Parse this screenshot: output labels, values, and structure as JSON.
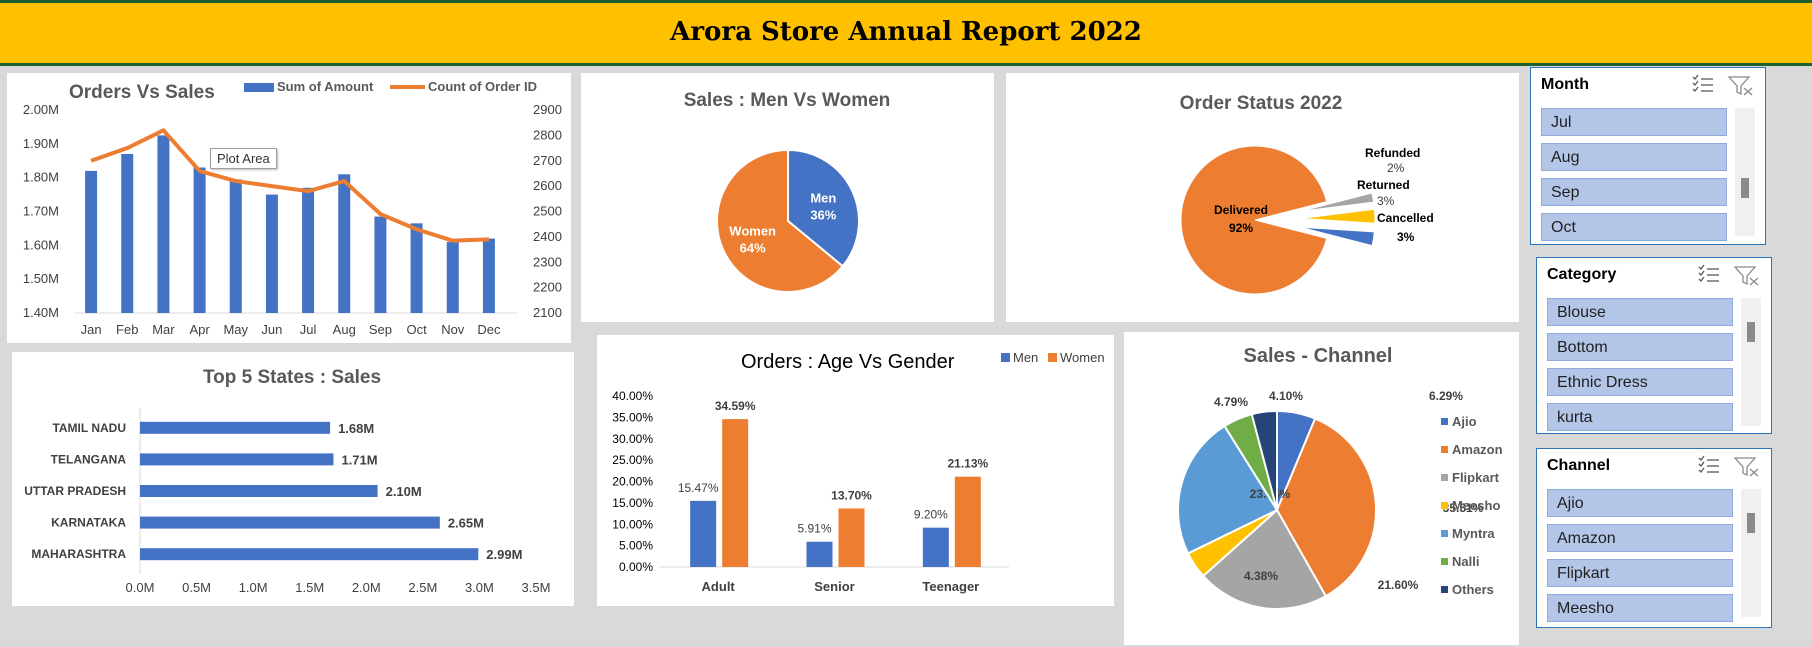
{
  "header": {
    "title": "Arora Store Annual Report 2022"
  },
  "colors": {
    "blue": "#4472c4",
    "orange": "#ed7d31",
    "gray": "#a5a5a5",
    "yellow": "#ffc000",
    "lightblue": "#5b9bd5",
    "green": "#70ad47",
    "navy": "#264478",
    "banner": "#ffc000"
  },
  "tooltip": {
    "text": "Plot Area"
  },
  "chart_data": [
    {
      "id": "orders_vs_sales",
      "type": "bar+line",
      "title": "Orders Vs Sales",
      "categories": [
        "Jan",
        "Feb",
        "Mar",
        "Apr",
        "May",
        "Jun",
        "Jul",
        "Aug",
        "Sep",
        "Oct",
        "Nov",
        "Dec"
      ],
      "series": [
        {
          "name": "Sum of Amount",
          "type": "bar",
          "axis": "left",
          "values": [
            1820000,
            1870000,
            1925000,
            1830000,
            1795000,
            1750000,
            1770000,
            1810000,
            1685000,
            1665000,
            1610000,
            1620000
          ]
        },
        {
          "name": "Count of Order ID",
          "type": "line",
          "axis": "right",
          "values": [
            2700,
            2750,
            2820,
            2660,
            2620,
            2600,
            2580,
            2620,
            2490,
            2430,
            2385,
            2390
          ]
        }
      ],
      "left_ticks": [
        "2.00M",
        "1.90M",
        "1.80M",
        "1.70M",
        "1.60M",
        "1.50M",
        "1.40M"
      ],
      "right_ticks": [
        "2900",
        "2800",
        "2700",
        "2600",
        "2500",
        "2400",
        "2300",
        "2200",
        "2100"
      ],
      "ylim_left": [
        1400000,
        2000000
      ],
      "ylim_right": [
        2100,
        2900
      ],
      "legend": "top"
    },
    {
      "id": "men_vs_women",
      "type": "pie",
      "title": "Sales : Men Vs Women",
      "slices": [
        {
          "name": "Men",
          "value": 36,
          "label": "36%"
        },
        {
          "name": "Women",
          "value": 64,
          "label": "64%"
        }
      ]
    },
    {
      "id": "order_status",
      "type": "pie",
      "title": "Order Status 2022",
      "slices": [
        {
          "name": "Delivered",
          "value": 92,
          "label": "92%"
        },
        {
          "name": "Refunded",
          "value": 2,
          "label": "2%"
        },
        {
          "name": "Returned",
          "value": 3,
          "label": "3%"
        },
        {
          "name": "Cancelled",
          "value": 3,
          "label": "3%"
        }
      ]
    },
    {
      "id": "top_states",
      "type": "bar",
      "title": "Top 5 States : Sales",
      "categories": [
        "TAMIL NADU",
        "TELANGANA",
        "UTTAR PRADESH",
        "KARNATAKA",
        "MAHARASHTRA"
      ],
      "values": [
        1680000,
        1710000,
        2100000,
        2650000,
        2990000
      ],
      "labels": [
        "1.68M",
        "1.71M",
        "2.10M",
        "2.65M",
        "2.99M"
      ],
      "x_ticks": [
        "0.0M",
        "0.5M",
        "1.0M",
        "1.5M",
        "2.0M",
        "2.5M",
        "3.0M",
        "3.5M"
      ],
      "xlim": [
        0,
        3500000
      ]
    },
    {
      "id": "age_vs_gender",
      "type": "bar",
      "title": "Orders : Age Vs Gender",
      "categories": [
        "Adult",
        "Senior",
        "Teenager"
      ],
      "series": [
        {
          "name": "Men",
          "values": [
            15.47,
            5.91,
            9.2
          ],
          "labels": [
            "15.47%",
            "5.91%",
            "9.20%"
          ]
        },
        {
          "name": "Women",
          "values": [
            34.59,
            13.7,
            21.13
          ],
          "labels": [
            "34.59%",
            "13.70%",
            "21.13%"
          ]
        }
      ],
      "y_ticks": [
        "40.00%",
        "35.00%",
        "30.00%",
        "25.00%",
        "20.00%",
        "15.00%",
        "10.00%",
        "5.00%",
        "0.00%"
      ],
      "ylim": [
        0,
        40
      ],
      "legend": "top-right"
    },
    {
      "id": "sales_channel",
      "type": "pie",
      "title": "Sales - Channel",
      "slices": [
        {
          "name": "Ajio",
          "value": 6.29,
          "label": "6.29%"
        },
        {
          "name": "Amazon",
          "value": 35.51,
          "label": "35.51%"
        },
        {
          "name": "Flipkart",
          "value": 21.6,
          "label": "21.60%"
        },
        {
          "name": "Meesho",
          "value": 4.38,
          "label": "4.38%"
        },
        {
          "name": "Myntra",
          "value": 23.34,
          "label": "23.34%"
        },
        {
          "name": "Nalli",
          "value": 4.79,
          "label": "4.79%"
        },
        {
          "name": "Others",
          "value": 4.1,
          "label": "4.10%"
        }
      ],
      "legend": "right"
    }
  ],
  "slicers": [
    {
      "id": "month",
      "title": "Month",
      "items": [
        "Jul",
        "Aug",
        "Sep",
        "Oct"
      ]
    },
    {
      "id": "category",
      "title": "Category",
      "items": [
        "Blouse",
        "Bottom",
        "Ethnic Dress",
        "kurta"
      ]
    },
    {
      "id": "channel",
      "title": "Channel",
      "items": [
        "Ajio",
        "Amazon",
        "Flipkart",
        "Meesho"
      ]
    }
  ]
}
